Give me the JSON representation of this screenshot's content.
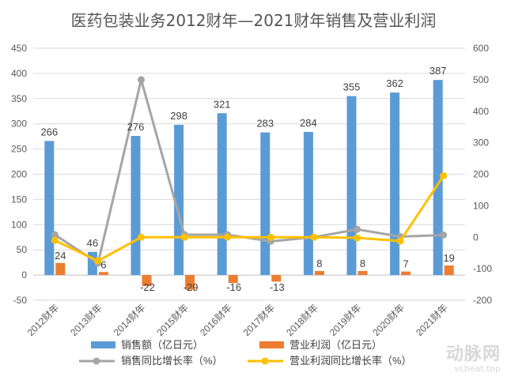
{
  "chart_data": {
    "type": "bar",
    "title": "医药包装业务2012财年—2021财年销售及营业利润",
    "categories": [
      "2012财年",
      "2013财年",
      "2014财年",
      "2015财年",
      "2016财年",
      "2017财年",
      "2018财年",
      "2019财年",
      "2020财年",
      "2021财年"
    ],
    "ylim_left": [
      -50,
      450
    ],
    "yticks_left": [
      -50,
      0,
      50,
      100,
      150,
      200,
      250,
      300,
      350,
      400,
      450
    ],
    "ylim_right": [
      -200,
      600
    ],
    "yticks_right": [
      -200,
      -100,
      0,
      100,
      200,
      300,
      400,
      500,
      600
    ],
    "series": [
      {
        "name": "销售额（亿日元）",
        "type": "bar",
        "axis": "left",
        "color": "#5B9BD5",
        "values": [
          266,
          46,
          276,
          298,
          321,
          283,
          284,
          355,
          362,
          387
        ],
        "labels": [
          "266",
          "46",
          "276",
          "298",
          "321",
          "283",
          "284",
          "355",
          "362",
          "387"
        ]
      },
      {
        "name": "营业利润（亿日元）",
        "type": "bar",
        "axis": "left",
        "color": "#ED7D31",
        "values": [
          24,
          6,
          -22,
          -29,
          -16,
          -13,
          8,
          8,
          7,
          19
        ],
        "labels": [
          "24",
          "6",
          "-22",
          "-29",
          "-16",
          "-13",
          "8",
          "8",
          "7",
          "19"
        ]
      },
      {
        "name": "销售同比增长率（%）",
        "type": "line",
        "axis": "right",
        "color": "#A5A5A5",
        "values": [
          8,
          -82,
          500,
          8,
          8,
          -13,
          0,
          25,
          2,
          7
        ]
      },
      {
        "name": "营业利润同比增长率（%）",
        "type": "line",
        "axis": "right",
        "color": "#FFC000",
        "values": [
          -10,
          -75,
          0,
          0,
          0,
          0,
          0,
          -2,
          -12,
          195
        ]
      }
    ]
  },
  "watermark": {
    "brand": "动脉网",
    "site": "vcbeat.top"
  }
}
